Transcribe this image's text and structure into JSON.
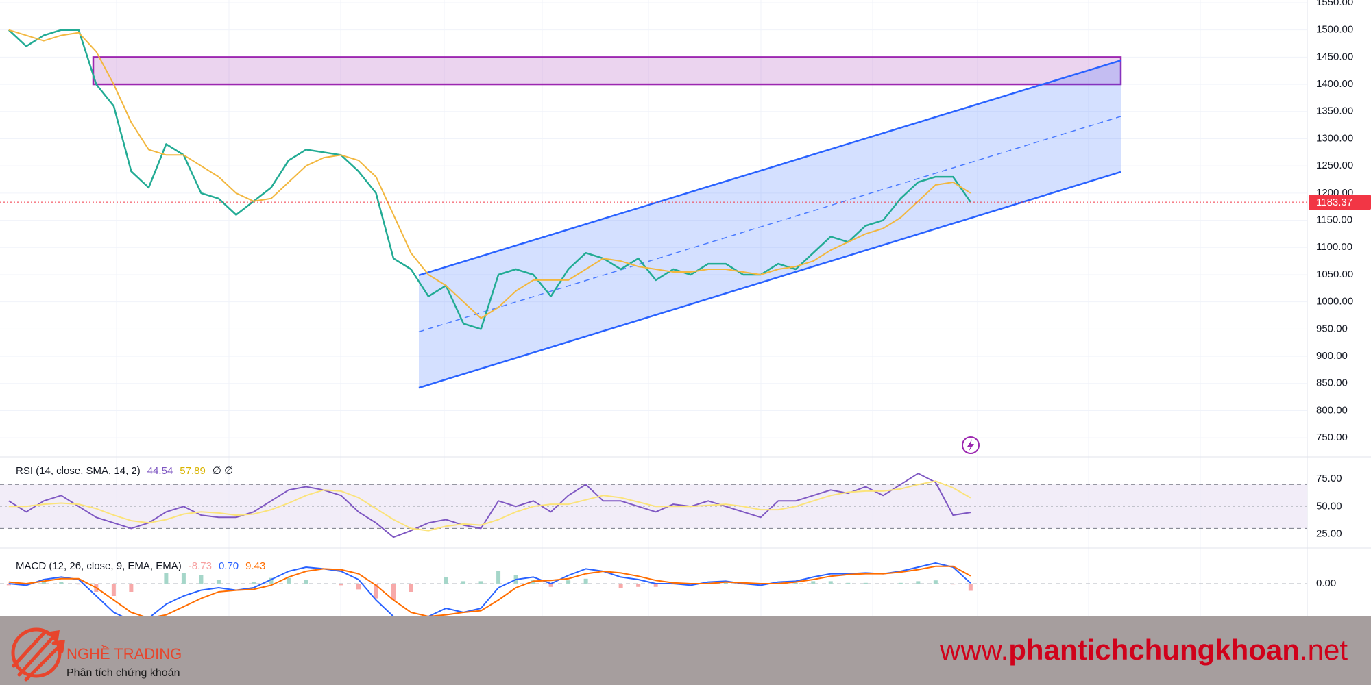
{
  "chart_data": [
    {
      "type": "line",
      "ylim": [
        720,
        1555
      ],
      "yticks": [
        {
          "value": 750,
          "label": "750.00"
        },
        {
          "value": 800,
          "label": "800.00"
        },
        {
          "value": 850,
          "label": "850.00"
        },
        {
          "value": 900,
          "label": "900.00"
        },
        {
          "value": 950,
          "label": "950.00"
        },
        {
          "value": 1000,
          "label": "1000.00"
        },
        {
          "value": 1050,
          "label": "1050.00"
        },
        {
          "value": 1100,
          "label": "1100.00"
        },
        {
          "value": 1150,
          "label": "1150.00"
        },
        {
          "value": 1200,
          "label": "1200.00"
        },
        {
          "value": 1250,
          "label": "1250.00"
        },
        {
          "value": 1300,
          "label": "1300.00"
        },
        {
          "value": 1350,
          "label": "1350.00"
        },
        {
          "value": 1400,
          "label": "1400.00"
        },
        {
          "value": 1450,
          "label": "1450.00"
        },
        {
          "value": 1500,
          "label": "1500.00"
        },
        {
          "value": 1550,
          "label": "1550.00"
        }
      ],
      "grid": true,
      "zone": [
        1400,
        1450
      ],
      "channel": {
        "upper": [
          1049,
          1444
        ],
        "middle": [
          945,
          1341
        ],
        "lower": [
          842,
          1239
        ]
      },
      "last_price_color": "#f23645",
      "series": [
        {
          "color": "#22ab94",
          "values": [
            1500,
            1470,
            1490,
            1500,
            1500,
            1400,
            1360,
            1240,
            1210,
            1290,
            1270,
            1200,
            1190,
            1160,
            1185,
            1210,
            1260,
            1280,
            1275,
            1270,
            1240,
            1200,
            1080,
            1060,
            1010,
            1030,
            960,
            950,
            1050,
            1060,
            1050,
            1010,
            1060,
            1090,
            1080,
            1060,
            1080,
            1040,
            1060,
            1050,
            1070,
            1070,
            1050,
            1050,
            1070,
            1060,
            1090,
            1120,
            1110,
            1140,
            1150,
            1190,
            1220,
            1230,
            1230,
            1183.37
          ]
        },
        {
          "color": "#f2b73f",
          "values": [
            1500,
            1490,
            1480,
            1490,
            1495,
            1460,
            1400,
            1330,
            1280,
            1270,
            1270,
            1250,
            1230,
            1200,
            1185,
            1190,
            1220,
            1250,
            1265,
            1270,
            1260,
            1230,
            1160,
            1090,
            1050,
            1030,
            1000,
            970,
            990,
            1020,
            1040,
            1040,
            1040,
            1060,
            1080,
            1075,
            1065,
            1060,
            1055,
            1055,
            1060,
            1060,
            1055,
            1050,
            1060,
            1065,
            1075,
            1095,
            1110,
            1125,
            1135,
            1155,
            1185,
            1215,
            1220,
            1200
          ]
        }
      ]
    },
    {
      "type": "line",
      "title": "RSI (14, close, SMA, 14, 2)",
      "status": [
        {
          "label": "44.54",
          "color": "#7e57c2"
        },
        {
          "label": "57.89",
          "color": "#d9b400"
        },
        {
          "label": "∅  ∅",
          "color": "#131722"
        }
      ],
      "ylim": [
        14,
        92
      ],
      "yticks": [
        {
          "value": 25,
          "label": "25.00"
        },
        {
          "value": 50,
          "label": "50.00"
        },
        {
          "value": 75,
          "label": "75.00"
        }
      ],
      "grid": false,
      "band": [
        30,
        70
      ],
      "midline": 50,
      "series": [
        {
          "color": "#7e57c2",
          "values": [
            55,
            45,
            55,
            60,
            50,
            40,
            35,
            30,
            35,
            45,
            50,
            42,
            40,
            40,
            45,
            55,
            65,
            68,
            65,
            60,
            45,
            35,
            22,
            28,
            35,
            38,
            33,
            30,
            55,
            50,
            55,
            45,
            60,
            70,
            55,
            55,
            50,
            45,
            52,
            50,
            55,
            50,
            45,
            40,
            55,
            55,
            60,
            65,
            62,
            68,
            60,
            70,
            80,
            72,
            42,
            44.54
          ]
        },
        {
          "color": "#fbe37a",
          "values": [
            50,
            50,
            52,
            53,
            52,
            48,
            42,
            37,
            35,
            38,
            43,
            45,
            44,
            42,
            43,
            47,
            53,
            60,
            65,
            64,
            58,
            48,
            38,
            30,
            28,
            32,
            34,
            33,
            38,
            45,
            50,
            52,
            52,
            56,
            60,
            58,
            54,
            50,
            50,
            50,
            51,
            52,
            50,
            47,
            47,
            50,
            55,
            60,
            63,
            64,
            64,
            66,
            70,
            73,
            67,
            57.89
          ]
        }
      ]
    },
    {
      "type": "line",
      "title": "MACD (12, 26, close, 9, EMA, EMA)",
      "status": [
        {
          "label": "-8.73",
          "color": "#f7a1a1"
        },
        {
          "label": "0.70",
          "color": "#2962ff"
        },
        {
          "label": "9.43",
          "color": "#ff6d00"
        }
      ],
      "ylim": [
        -40,
        40
      ],
      "yticks": [
        {
          "value": 0,
          "label": "0.00"
        }
      ],
      "grid": true,
      "series": [
        {
          "type": "bar",
          "color": "#a5d6c9",
          "color_negative": "#f7a9a9",
          "values": [
            -2,
            -2,
            2,
            2,
            -1,
            -10,
            -15,
            -10,
            0,
            13,
            13,
            10,
            5,
            0,
            2,
            7,
            7,
            5,
            0,
            -2,
            -7,
            -18,
            -20,
            -10,
            0,
            8,
            3,
            3,
            15,
            10,
            5,
            -4,
            4,
            6,
            0,
            -5,
            -4,
            -4,
            -1,
            -2,
            2,
            1,
            -1,
            -2,
            2,
            1,
            3,
            3,
            1,
            1,
            0,
            1,
            3,
            4,
            -1,
            -8.73
          ]
        },
        {
          "color": "#2962ff",
          "values": [
            0,
            -2,
            5,
            8,
            5,
            -15,
            -35,
            -45,
            -42,
            -25,
            -15,
            -8,
            -5,
            -8,
            -5,
            5,
            15,
            20,
            18,
            15,
            5,
            -20,
            -40,
            -45,
            -40,
            -30,
            -35,
            -30,
            -5,
            5,
            8,
            0,
            10,
            18,
            15,
            8,
            5,
            0,
            0,
            -2,
            2,
            3,
            0,
            -2,
            2,
            3,
            8,
            12,
            12,
            13,
            12,
            15,
            20,
            25,
            20,
            0.7
          ]
        },
        {
          "color": "#ff6d00",
          "values": [
            2,
            0,
            3,
            6,
            6,
            -5,
            -20,
            -35,
            -42,
            -38,
            -28,
            -18,
            -10,
            -8,
            -7,
            -2,
            8,
            15,
            18,
            17,
            12,
            -2,
            -20,
            -35,
            -40,
            -38,
            -35,
            -33,
            -20,
            -5,
            3,
            4,
            6,
            12,
            15,
            13,
            9,
            4,
            1,
            0,
            0,
            2,
            1,
            0,
            0,
            2,
            5,
            9,
            11,
            12,
            12,
            14,
            17,
            21,
            21,
            9.43
          ]
        }
      ]
    }
  ],
  "footer": {
    "brand": "NGHỀ TRADING",
    "tagline": "Phân tích chứng khoán",
    "url_prefix": "www.",
    "url_main": "phantichchungkhoan",
    "url_suffix": ".net"
  }
}
